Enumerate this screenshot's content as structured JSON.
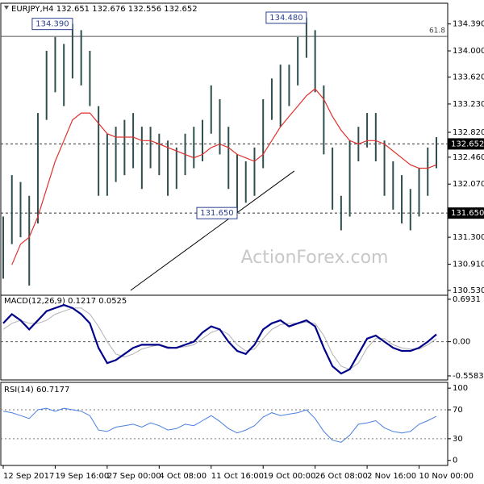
{
  "chart_data": [
    {
      "type": "range",
      "title": "EURJPY,H4  132.651 132.676 132.556 132.652",
      "watermark": "ActionForex.com",
      "categories": [
        "12 Sep 2017",
        null,
        null,
        null,
        null,
        null,
        "19 Sep 16:00",
        null,
        null,
        null,
        null,
        null,
        "27 Sep 00:00",
        null,
        null,
        null,
        null,
        null,
        "4 Oct 08:00",
        null,
        null,
        null,
        null,
        null,
        "11 Oct 16:00",
        null,
        null,
        null,
        null,
        null,
        "19 Oct 00:00",
        null,
        null,
        null,
        null,
        null,
        "26 Oct 08:00",
        null,
        null,
        null,
        null,
        null,
        "2 Nov 16:00",
        null,
        null,
        null,
        null,
        null,
        "10 Nov 00:00",
        null,
        null
      ],
      "high": [
        131.6,
        132.2,
        132.1,
        131.9,
        133.1,
        134.0,
        134.2,
        134.1,
        134.39,
        134.3,
        134.0,
        133.2,
        132.8,
        132.9,
        133.0,
        133.1,
        132.9,
        132.9,
        132.8,
        132.7,
        132.6,
        132.8,
        132.9,
        133.0,
        133.5,
        133.3,
        132.9,
        132.5,
        132.4,
        132.6,
        133.3,
        133.6,
        133.8,
        133.8,
        134.2,
        134.48,
        134.3,
        133.5,
        132.6,
        131.9,
        132.7,
        132.9,
        133.1,
        133.1,
        132.7,
        132.4,
        132.2,
        132.0,
        132.3,
        132.6,
        132.75
      ],
      "low": [
        130.7,
        131.2,
        131.3,
        130.6,
        131.5,
        133.0,
        133.4,
        133.2,
        133.6,
        133.5,
        133.2,
        131.9,
        131.9,
        132.1,
        132.2,
        132.3,
        132.0,
        132.3,
        132.2,
        131.9,
        132.0,
        132.2,
        132.3,
        132.4,
        132.8,
        132.5,
        132.0,
        131.65,
        131.8,
        131.9,
        132.3,
        133.0,
        132.9,
        133.2,
        133.5,
        133.9,
        133.4,
        132.5,
        131.7,
        131.4,
        131.6,
        132.4,
        132.6,
        132.4,
        131.9,
        131.7,
        131.5,
        131.4,
        131.6,
        131.9,
        132.3
      ],
      "color": "#2f4f4f",
      "ma": {
        "color": "#e0302d",
        "values": [
          null,
          130.9,
          131.2,
          131.3,
          131.6,
          132.0,
          132.4,
          132.7,
          133.0,
          133.1,
          133.1,
          132.95,
          132.8,
          132.75,
          132.75,
          132.75,
          132.7,
          132.7,
          132.65,
          132.6,
          132.55,
          132.5,
          132.45,
          132.5,
          132.6,
          132.65,
          132.6,
          132.5,
          132.45,
          132.4,
          132.5,
          132.7,
          132.9,
          133.05,
          133.2,
          133.35,
          133.45,
          133.3,
          133.05,
          132.85,
          132.7,
          132.65,
          132.7,
          132.7,
          132.65,
          132.55,
          132.45,
          132.35,
          132.3,
          132.3,
          132.35
        ]
      },
      "annotations": [
        {
          "value": 134.39,
          "label": "134.390"
        },
        {
          "value": 134.48,
          "label": "134.480"
        },
        {
          "value": 131.65,
          "label": "131.650"
        }
      ],
      "levels": [
        {
          "value": 134.21,
          "label": "61.8",
          "style": "solid"
        },
        {
          "value": 132.652,
          "label": "132.652",
          "style": "dashed"
        },
        {
          "value": 131.65,
          "label": "131.650",
          "style": "dashed"
        }
      ],
      "trendline": {
        "x": [
          14.7,
          33.6
        ],
        "values": [
          130.53,
          132.26
        ]
      },
      "ylim": [
        130.46,
        134.69
      ],
      "yticks": [
        {
          "value": 134.39,
          "label": "134.390"
        },
        {
          "value": 134.0,
          "label": "134.000"
        },
        {
          "value": 133.62,
          "label": "133.620"
        },
        {
          "value": 133.23,
          "label": "133.230"
        },
        {
          "value": 132.82,
          "label": "132.820"
        },
        {
          "value": 132.46,
          "label": "132.460"
        },
        {
          "value": 132.07,
          "label": "132.070"
        },
        {
          "value": 131.3,
          "label": "131.300"
        },
        {
          "value": 130.91,
          "label": "130.910"
        },
        {
          "value": 130.53,
          "label": "130.530"
        }
      ]
    },
    {
      "type": "macd",
      "title": "MACD(12,26,9) 0.1217 0.0525",
      "series": [
        {
          "color": "#00008b",
          "values": [
            0.3,
            0.45,
            0.35,
            0.2,
            0.35,
            0.5,
            0.55,
            0.6,
            0.55,
            0.45,
            0.3,
            -0.1,
            -0.35,
            -0.3,
            -0.2,
            -0.1,
            -0.05,
            -0.05,
            -0.05,
            -0.1,
            -0.1,
            -0.05,
            0.0,
            0.15,
            0.25,
            0.2,
            0.0,
            -0.15,
            -0.2,
            -0.05,
            0.2,
            0.3,
            0.35,
            0.25,
            0.3,
            0.35,
            0.25,
            -0.1,
            -0.4,
            -0.52,
            -0.45,
            -0.2,
            0.05,
            0.1,
            0.0,
            -0.1,
            -0.15,
            -0.15,
            -0.1,
            0.0,
            0.12
          ]
        },
        {
          "color": "#b0b0b0",
          "values": [
            0.2,
            0.3,
            0.35,
            0.3,
            0.3,
            0.35,
            0.45,
            0.5,
            0.55,
            0.55,
            0.45,
            0.25,
            0.0,
            -0.2,
            -0.25,
            -0.2,
            -0.12,
            -0.08,
            -0.05,
            -0.08,
            -0.1,
            -0.08,
            -0.05,
            0.05,
            0.15,
            0.2,
            0.12,
            -0.05,
            -0.15,
            -0.12,
            0.05,
            0.2,
            0.28,
            0.3,
            0.3,
            0.32,
            0.3,
            0.1,
            -0.2,
            -0.4,
            -0.45,
            -0.35,
            -0.1,
            0.05,
            0.05,
            -0.05,
            -0.1,
            -0.12,
            -0.12,
            -0.05,
            0.05
          ]
        }
      ],
      "levels": [
        0
      ],
      "ylim": [
        -0.624,
        0.759
      ],
      "yticks": [
        {
          "value": 0.6931,
          "label": "0.6931"
        },
        {
          "value": 0,
          "label": "0.00"
        },
        {
          "value": -0.5583,
          "label": "-0.5583"
        }
      ]
    },
    {
      "type": "line",
      "title": "RSI(14) 60.7177",
      "color": "#4a7fe0",
      "values": [
        68,
        66,
        62,
        58,
        70,
        72,
        68,
        72,
        70,
        68,
        62,
        42,
        40,
        46,
        48,
        50,
        46,
        52,
        48,
        42,
        44,
        50,
        48,
        55,
        62,
        54,
        44,
        38,
        42,
        48,
        60,
        66,
        62,
        64,
        66,
        70,
        58,
        40,
        28,
        25,
        35,
        50,
        52,
        55,
        45,
        40,
        38,
        40,
        50,
        55,
        61
      ],
      "levels": [
        70,
        30
      ],
      "ylim": [
        -7,
        108
      ],
      "yticks": [
        100,
        70,
        30,
        0
      ]
    }
  ]
}
